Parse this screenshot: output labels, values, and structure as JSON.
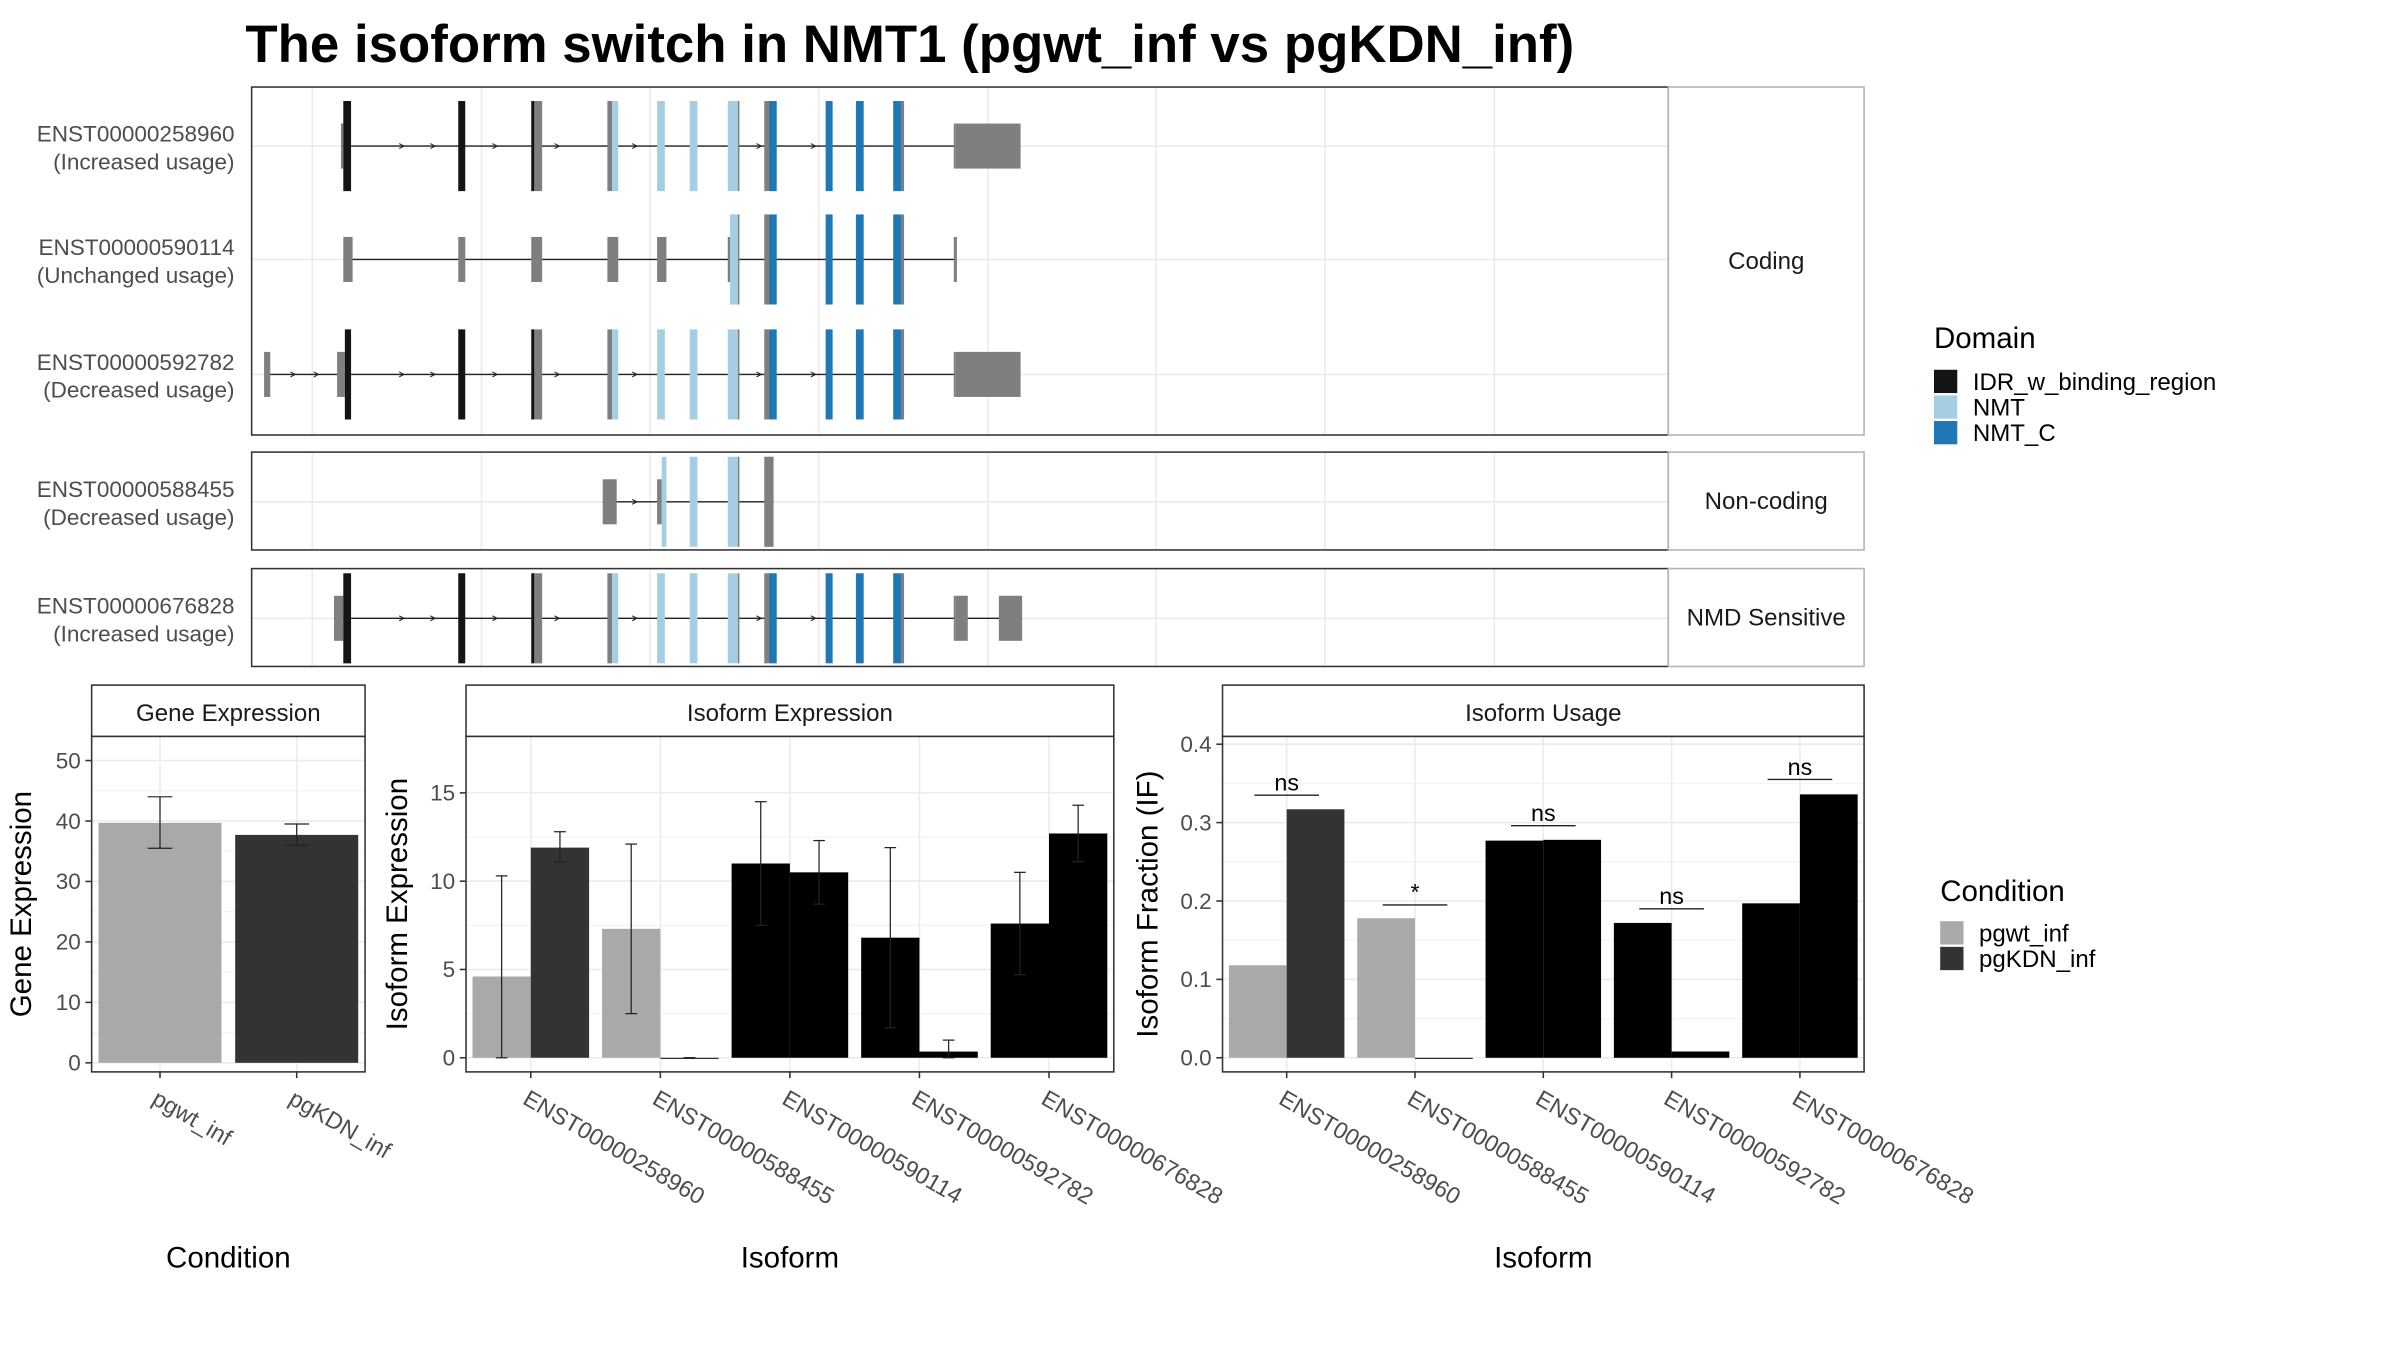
{
  "title": "The isoform switch in NMT1 (pgwt_inf vs pgKDN_inf)",
  "colors": {
    "IDR_w_binding_region": "#141414",
    "NMT": "#a6cee3",
    "NMT_C": "#1f78b4",
    "none": "#7f7f7f",
    "pgwt_inf": "#a9a9a9",
    "pgKDN_inf": "#333333"
  },
  "structure": {
    "panels": [
      {
        "label": "Coding",
        "isoforms": [
          {
            "id": "ENST00000258960",
            "usage": "(Increased usage)",
            "exons": [
              [
                219.5,
                221,
                "none"
              ],
              [
                221,
                226,
                "IDR_w_binding_region"
              ],
              [
                295,
                299.5,
                "IDR_w_binding_region"
              ],
              [
                342,
                344,
                "IDR_w_binding_region"
              ],
              [
                344,
                349,
                "none"
              ],
              [
                391,
                394,
                "none"
              ],
              [
                394,
                398,
                "NMT"
              ],
              [
                423,
                428,
                "NMT"
              ],
              [
                444,
                449,
                "NMT"
              ],
              [
                468.5,
                475,
                "NMT"
              ],
              [
                475,
                476,
                "none"
              ],
              [
                492,
                495,
                "none"
              ],
              [
                495,
                500,
                "NMT_C"
              ],
              [
                531.5,
                536,
                "NMT_C"
              ],
              [
                551,
                556,
                "NMT_C"
              ],
              [
                575,
                580,
                "NMT_C"
              ],
              [
                580,
                582,
                "none"
              ],
              [
                614,
                615,
                "none"
              ],
              [
                615,
                657,
                "none"
              ]
            ],
            "tall": [
              [
                221,
                582
              ]
            ],
            "arrows": [
              260,
              280,
              320,
              360,
              410,
              490,
              525
            ],
            "start": 219.5,
            "end": 657
          },
          {
            "id": "ENST00000590114",
            "usage": "(Unchanged usage)",
            "exons": [
              [
                221,
                227,
                "none"
              ],
              [
                295,
                299.5,
                "none"
              ],
              [
                342,
                349,
                "none"
              ],
              [
                391,
                398,
                "none"
              ],
              [
                423,
                429,
                "none"
              ],
              [
                468.5,
                470,
                "none"
              ],
              [
                470,
                475,
                "NMT"
              ],
              [
                475,
                476,
                "none"
              ],
              [
                492,
                495,
                "none"
              ],
              [
                495,
                500,
                "NMT_C"
              ],
              [
                531.5,
                536,
                "NMT_C"
              ],
              [
                551,
                556,
                "NMT_C"
              ],
              [
                575,
                580,
                "NMT_C"
              ],
              [
                580,
                582,
                "none"
              ],
              [
                614,
                616,
                "none"
              ]
            ],
            "tall": [
              [
                470,
                582
              ]
            ],
            "arrows": [],
            "start": 221,
            "end": 616
          },
          {
            "id": "ENST00000592782",
            "usage": "(Decreased usage)",
            "exons": [
              [
                170,
                174,
                "none"
              ],
              [
                217,
                222,
                "none"
              ],
              [
                222,
                226,
                "IDR_w_binding_region"
              ],
              [
                295,
                299.5,
                "IDR_w_binding_region"
              ],
              [
                342,
                344,
                "IDR_w_binding_region"
              ],
              [
                344,
                349,
                "none"
              ],
              [
                391,
                394,
                "none"
              ],
              [
                394,
                398,
                "NMT"
              ],
              [
                423,
                428,
                "NMT"
              ],
              [
                444,
                449,
                "NMT"
              ],
              [
                468.5,
                475,
                "NMT"
              ],
              [
                475,
                476,
                "none"
              ],
              [
                492,
                495,
                "none"
              ],
              [
                495,
                500,
                "NMT_C"
              ],
              [
                531.5,
                536,
                "NMT_C"
              ],
              [
                551,
                556,
                "NMT_C"
              ],
              [
                575,
                580,
                "NMT_C"
              ],
              [
                580,
                582,
                "none"
              ],
              [
                614,
                615,
                "none"
              ],
              [
                615,
                657,
                "none"
              ]
            ],
            "tall": [
              [
                222,
                582
              ]
            ],
            "arrows": [
              190,
              205,
              260,
              280,
              320,
              360,
              410,
              490,
              525
            ],
            "start": 170,
            "end": 657
          }
        ]
      },
      {
        "label": "Non-coding",
        "isoforms": [
          {
            "id": "ENST00000588455",
            "usage": "(Decreased usage)",
            "exons": [
              [
                388,
                397,
                "none"
              ],
              [
                423,
                426,
                "none"
              ],
              [
                426,
                429,
                "NMT"
              ],
              [
                444,
                449,
                "NMT"
              ],
              [
                468.5,
                475,
                "NMT"
              ],
              [
                475,
                476,
                "none"
              ],
              [
                492,
                498,
                "none"
              ]
            ],
            "tall": [
              [
                426,
                476
              ],
              [
                492,
                498
              ]
            ],
            "arrows": [
              410
            ],
            "start": 388,
            "end": 498
          }
        ]
      },
      {
        "label": "NMD Sensitive",
        "isoforms": [
          {
            "id": "ENST00000676828",
            "usage": "(Increased usage)",
            "exons": [
              [
                215,
                221,
                "none"
              ],
              [
                221,
                226,
                "IDR_w_binding_region"
              ],
              [
                295,
                299.5,
                "IDR_w_binding_region"
              ],
              [
                342,
                344,
                "IDR_w_binding_region"
              ],
              [
                344,
                349,
                "none"
              ],
              [
                391,
                394,
                "none"
              ],
              [
                394,
                398,
                "NMT"
              ],
              [
                423,
                428,
                "NMT"
              ],
              [
                444,
                449,
                "NMT"
              ],
              [
                468.5,
                475,
                "NMT"
              ],
              [
                475,
                476,
                "none"
              ],
              [
                492,
                495,
                "none"
              ],
              [
                495,
                500,
                "NMT_C"
              ],
              [
                531.5,
                536,
                "NMT_C"
              ],
              [
                551,
                556,
                "NMT_C"
              ],
              [
                575,
                580,
                "NMT_C"
              ],
              [
                580,
                582,
                "none"
              ],
              [
                614,
                615,
                "none"
              ],
              [
                615,
                623,
                "none"
              ],
              [
                643,
                658,
                "none"
              ]
            ],
            "tall": [
              [
                221,
                582
              ]
            ],
            "arrows": [
              260,
              280,
              320,
              360,
              410,
              490,
              525
            ],
            "start": 215,
            "end": 658
          }
        ]
      }
    ]
  },
  "legend_domain": {
    "title": "Domain",
    "items": [
      "IDR_w_binding_region",
      "NMT",
      "NMT_C"
    ]
  },
  "legend_condition": {
    "title": "Condition",
    "items": [
      "pgwt_inf",
      "pgKDN_inf"
    ]
  },
  "chart_data": [
    {
      "type": "bar",
      "title": "Gene Expression",
      "xlabel": "Condition",
      "ylabel": "Gene Expression",
      "categories": [
        "pgwt_inf",
        "pgKDN_inf"
      ],
      "values": [
        39.7,
        37.7
      ],
      "errors": [
        [
          35.5,
          44.0
        ],
        [
          36.0,
          39.5
        ]
      ],
      "ylim": [
        -1.5,
        54
      ],
      "yticks": [
        0,
        10,
        20,
        30,
        40,
        50
      ]
    },
    {
      "type": "bar",
      "title": "Isoform Expression",
      "xlabel": "Isoform",
      "ylabel": "Isoform Expression",
      "categories": [
        "ENST00000258960",
        "ENST00000588455",
        "ENST00000590114",
        "ENST00000592782",
        "ENST00000676828"
      ],
      "series": [
        {
          "name": "pgwt_inf",
          "values": [
            4.6,
            7.3,
            11.0,
            6.8,
            7.6
          ],
          "errors": [
            [
              0.0,
              10.3
            ],
            [
              2.5,
              12.1
            ],
            [
              7.5,
              14.5
            ],
            [
              1.7,
              11.9
            ],
            [
              4.7,
              10.5
            ]
          ]
        },
        {
          "name": "pgKDN_inf",
          "values": [
            11.9,
            0.0,
            10.5,
            0.35,
            12.7
          ],
          "errors": [
            [
              11.1,
              12.8
            ],
            [
              0.0,
              0.0
            ],
            [
              8.7,
              12.3
            ],
            [
              0.0,
              1.0
            ],
            [
              11.1,
              14.3
            ]
          ]
        }
      ],
      "ylim": [
        -0.8,
        18.2
      ],
      "yticks": [
        0,
        5,
        10,
        15
      ]
    },
    {
      "type": "bar",
      "title": "Isoform Usage",
      "xlabel": "Isoform",
      "ylabel": "Isoform Fraction (IF)",
      "categories": [
        "ENST00000258960",
        "ENST00000588455",
        "ENST00000590114",
        "ENST00000592782",
        "ENST00000676828"
      ],
      "series": [
        {
          "name": "pgwt_inf",
          "values": [
            0.118,
            0.178,
            0.277,
            0.172,
            0.197
          ]
        },
        {
          "name": "pgKDN_inf",
          "values": [
            0.317,
            0.0,
            0.278,
            0.008,
            0.336
          ]
        }
      ],
      "significance": [
        {
          "label": "ns",
          "y": 0.335
        },
        {
          "label": "*",
          "y": 0.195
        },
        {
          "label": "ns",
          "y": 0.296
        },
        {
          "label": "ns",
          "y": 0.19
        },
        {
          "label": "ns",
          "y": 0.355
        }
      ],
      "ylim": [
        -0.018,
        0.41
      ],
      "yticks": [
        0.0,
        0.1,
        0.2,
        0.3,
        0.4
      ],
      "ytick_labels": [
        "0.0",
        "0.1",
        "0.2",
        "0.3",
        "0.4"
      ]
    }
  ]
}
